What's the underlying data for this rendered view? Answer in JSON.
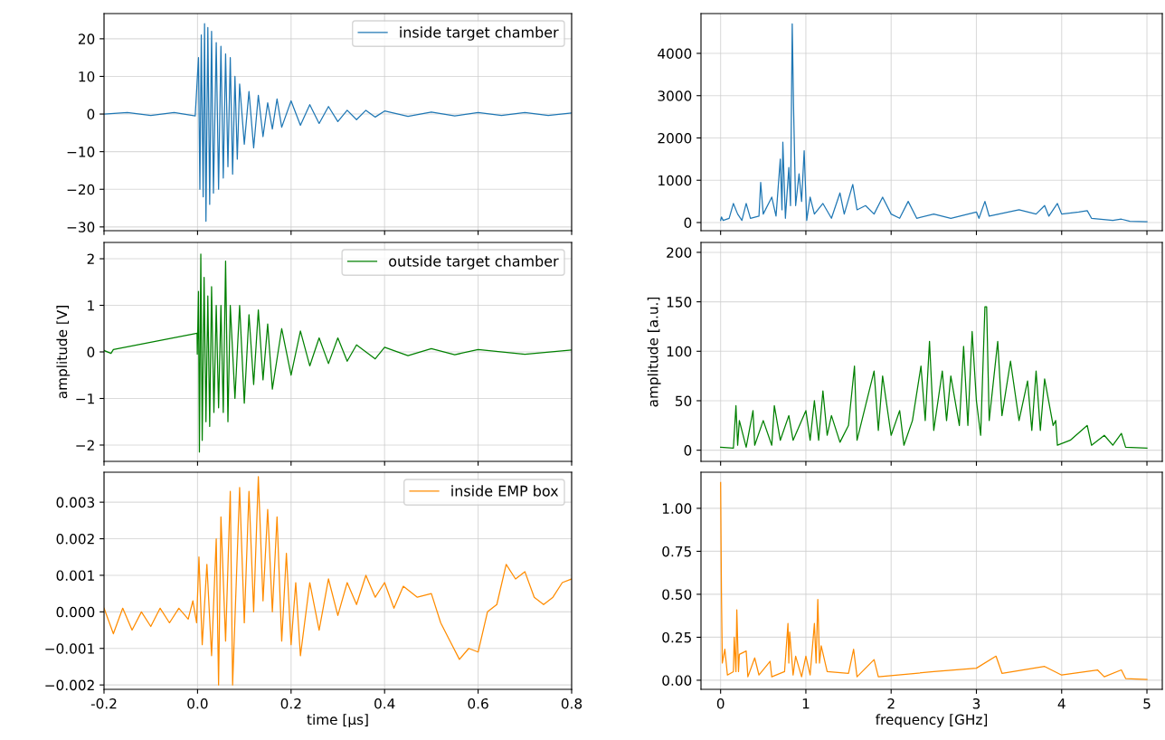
{
  "chart_data": [
    {
      "type": "line",
      "grid": true,
      "legend": "top right",
      "tick_labels": "y",
      "xlim": [
        -0.2,
        0.8
      ],
      "ylim": [
        -31,
        26.7
      ],
      "yticks": [
        {
          "value": -30,
          "label": "−30"
        },
        {
          "value": -20,
          "label": "−20"
        },
        {
          "value": -10,
          "label": "−10"
        },
        0,
        10,
        20
      ],
      "series": [
        {
          "name": "inside target chamber",
          "color": "#1f77b4",
          "x": [
            -0.2,
            -0.15,
            -0.1,
            -0.05,
            -0.005,
            0.002,
            0.005,
            0.008,
            0.012,
            0.015,
            0.018,
            0.022,
            0.026,
            0.03,
            0.034,
            0.04,
            0.045,
            0.05,
            0.055,
            0.06,
            0.065,
            0.07,
            0.075,
            0.08,
            0.085,
            0.09,
            0.1,
            0.11,
            0.12,
            0.13,
            0.14,
            0.15,
            0.16,
            0.17,
            0.18,
            0.2,
            0.22,
            0.24,
            0.26,
            0.28,
            0.3,
            0.32,
            0.34,
            0.36,
            0.38,
            0.4,
            0.45,
            0.5,
            0.55,
            0.6,
            0.65,
            0.7,
            0.75,
            0.8
          ],
          "values": [
            0,
            0.4,
            -0.4,
            0.4,
            -0.5,
            15,
            -20,
            21,
            -22,
            24,
            -28.5,
            23,
            -24,
            22,
            -21,
            19,
            -20,
            18,
            -17,
            16,
            -14,
            15,
            -16,
            10,
            -12,
            8,
            -8,
            6,
            -9,
            5,
            -6,
            3,
            -4,
            4,
            -3.5,
            3.5,
            -3,
            2.5,
            -2.5,
            2,
            -2,
            1,
            -1.5,
            1,
            -0.8,
            0.8,
            -0.6,
            0.5,
            -0.5,
            0.4,
            -0.4,
            0.4,
            -0.4,
            0.3
          ]
        }
      ]
    },
    {
      "type": "line",
      "grid": true,
      "tick_labels": "y",
      "xlim": [
        -0.23,
        5.18
      ],
      "ylim": [
        -193,
        4941
      ],
      "yticks": [
        0,
        1000,
        2000,
        3000,
        4000
      ],
      "series": [
        {
          "color": "#1f77b4",
          "x": [
            0,
            0.01,
            0.03,
            0.1,
            0.15,
            0.2,
            0.25,
            0.3,
            0.35,
            0.45,
            0.47,
            0.5,
            0.6,
            0.65,
            0.7,
            0.72,
            0.73,
            0.76,
            0.8,
            0.82,
            0.84,
            0.855,
            0.86,
            0.88,
            0.92,
            0.95,
            0.98,
            1.0,
            1.01,
            1.05,
            1.1,
            1.2,
            1.3,
            1.4,
            1.45,
            1.55,
            1.6,
            1.7,
            1.8,
            1.9,
            2.0,
            2.1,
            2.2,
            2.3,
            2.5,
            2.7,
            3.0,
            3.03,
            3.1,
            3.15,
            3.5,
            3.7,
            3.8,
            3.85,
            3.95,
            4.0,
            4.2,
            4.3,
            4.35,
            4.6,
            4.7,
            4.8,
            5.0
          ],
          "values": [
            50,
            130,
            50,
            100,
            450,
            200,
            50,
            450,
            100,
            150,
            950,
            200,
            600,
            150,
            1500,
            300,
            1900,
            100,
            1300,
            400,
            4700,
            2800,
            2300,
            400,
            1150,
            500,
            1700,
            600,
            50,
            600,
            200,
            450,
            100,
            700,
            200,
            900,
            300,
            400,
            200,
            600,
            200,
            100,
            500,
            100,
            200,
            100,
            250,
            100,
            500,
            150,
            300,
            200,
            400,
            150,
            450,
            200,
            250,
            280,
            100,
            50,
            80,
            30,
            20
          ]
        }
      ]
    },
    {
      "type": "line",
      "grid": true,
      "legend": "top right",
      "tick_labels": "y",
      "ylabel": "amplitude [V]",
      "xlim": [
        -0.2,
        0.8
      ],
      "ylim": [
        -2.35,
        2.35
      ],
      "yticks": [
        {
          "value": -2,
          "label": "−2"
        },
        {
          "value": -1,
          "label": "−1"
        },
        0,
        1,
        2
      ],
      "series": [
        {
          "name": "outside target chamber",
          "color": "#008000",
          "x": [
            -0.2,
            -0.185,
            -0.18,
            -0.001,
            -0.0005,
            0.002,
            0.004,
            0.007,
            0.01,
            0.014,
            0.018,
            0.022,
            0.026,
            0.03,
            0.035,
            0.04,
            0.045,
            0.05,
            0.055,
            0.06,
            0.065,
            0.07,
            0.08,
            0.09,
            0.1,
            0.11,
            0.12,
            0.13,
            0.14,
            0.15,
            0.16,
            0.18,
            0.2,
            0.22,
            0.24,
            0.26,
            0.28,
            0.3,
            0.32,
            0.34,
            0.38,
            0.4,
            0.45,
            0.5,
            0.55,
            0.6,
            0.7,
            0.8
          ],
          "values": [
            0.03,
            -0.03,
            0.05,
            0.4,
            -0.05,
            1.3,
            -2.15,
            2.1,
            -1.9,
            1.6,
            -1.5,
            1.2,
            -1.6,
            1.4,
            -1.3,
            1.0,
            -1.2,
            1.0,
            -1.3,
            1.95,
            -1.5,
            1.0,
            -1.0,
            1.0,
            -1.1,
            0.8,
            -0.7,
            0.9,
            -0.6,
            0.6,
            -0.8,
            0.5,
            -0.5,
            0.45,
            -0.3,
            0.3,
            -0.25,
            0.3,
            -0.2,
            0.15,
            -0.15,
            0.1,
            -0.08,
            0.07,
            -0.06,
            0.05,
            -0.05,
            0.04
          ]
        }
      ]
    },
    {
      "type": "line",
      "grid": true,
      "tick_labels": "y",
      "ylabel": "amplitude [a.u.]",
      "xlim": [
        -0.23,
        5.18
      ],
      "ylim": [
        -11.3,
        210
      ],
      "yticks": [
        0,
        50,
        100,
        150,
        200
      ],
      "series": [
        {
          "color": "#008000",
          "x": [
            0,
            0.15,
            0.18,
            0.2,
            0.22,
            0.3,
            0.38,
            0.4,
            0.5,
            0.6,
            0.63,
            0.7,
            0.8,
            0.85,
            1.0,
            1.05,
            1.1,
            1.15,
            1.2,
            1.25,
            1.3,
            1.4,
            1.5,
            1.57,
            1.6,
            1.7,
            1.8,
            1.85,
            1.9,
            2.0,
            2.1,
            2.15,
            2.25,
            2.35,
            2.4,
            2.45,
            2.5,
            2.6,
            2.65,
            2.7,
            2.8,
            2.85,
            2.9,
            2.95,
            3.0,
            3.05,
            3.1,
            3.12,
            3.15,
            3.25,
            3.3,
            3.4,
            3.5,
            3.6,
            3.65,
            3.7,
            3.75,
            3.8,
            3.9,
            3.93,
            3.95,
            4.1,
            4.3,
            4.35,
            4.5,
            4.6,
            4.7,
            4.75,
            5.0
          ],
          "values": [
            3,
            2,
            45,
            5,
            30,
            3,
            40,
            5,
            30,
            5,
            45,
            10,
            35,
            10,
            40,
            10,
            50,
            10,
            60,
            15,
            35,
            8,
            25,
            85,
            10,
            45,
            80,
            20,
            75,
            15,
            40,
            5,
            30,
            85,
            30,
            110,
            20,
            80,
            30,
            75,
            25,
            105,
            25,
            120,
            50,
            15,
            145,
            145,
            30,
            110,
            35,
            90,
            30,
            70,
            20,
            80,
            20,
            72,
            25,
            30,
            5,
            10,
            25,
            5,
            15,
            5,
            17,
            3,
            2
          ]
        }
      ]
    },
    {
      "type": "line",
      "grid": true,
      "legend": "top right",
      "xlabel": "time [µs]",
      "xlim": [
        -0.2,
        0.8
      ],
      "xticks": [
        {
          "value": -0.2,
          "label": "-0.2"
        },
        {
          "value": 0.0,
          "label": "0.0"
        },
        0.2,
        0.4,
        0.6,
        0.8
      ],
      "ylim": [
        -0.00212,
        0.00382
      ],
      "yticks": [
        {
          "value": -0.002,
          "label": "−0.002"
        },
        {
          "value": -0.001,
          "label": "−0.001"
        },
        {
          "value": 0,
          "label": "0.000"
        },
        0.001,
        0.002,
        0.003
      ],
      "series": [
        {
          "name": "inside EMP box",
          "color": "#ff8c00",
          "x": [
            -0.2,
            -0.18,
            -0.16,
            -0.14,
            -0.12,
            -0.1,
            -0.08,
            -0.06,
            -0.04,
            -0.02,
            -0.01,
            -0.002,
            0.003,
            0.01,
            0.02,
            0.03,
            0.04,
            0.045,
            0.05,
            0.06,
            0.07,
            0.075,
            0.09,
            0.1,
            0.11,
            0.12,
            0.13,
            0.14,
            0.15,
            0.16,
            0.17,
            0.18,
            0.19,
            0.2,
            0.21,
            0.22,
            0.24,
            0.26,
            0.28,
            0.3,
            0.32,
            0.34,
            0.36,
            0.38,
            0.4,
            0.42,
            0.44,
            0.47,
            0.5,
            0.52,
            0.54,
            0.56,
            0.58,
            0.6,
            0.62,
            0.64,
            0.66,
            0.68,
            0.7,
            0.72,
            0.74,
            0.76,
            0.78,
            0.8
          ],
          "values": [
            0.0001,
            -0.0006,
            0.0001,
            -0.0005,
            0.0,
            -0.0004,
            0.0001,
            -0.0003,
            0.0001,
            -0.0002,
            0.0003,
            -0.0003,
            0.0015,
            -0.0009,
            0.0013,
            -0.0012,
            0.002,
            -0.002,
            0.0026,
            -0.0008,
            0.0033,
            -0.002,
            0.0034,
            -0.0003,
            0.0033,
            0.0,
            0.0037,
            0.0003,
            0.0028,
            0.0,
            0.0026,
            -0.0008,
            0.0016,
            -0.0009,
            0.0008,
            -0.0012,
            0.0008,
            -0.0005,
            0.0009,
            -0.0001,
            0.0008,
            0.0002,
            0.001,
            0.0004,
            0.0008,
            0.0001,
            0.0007,
            0.0004,
            0.0005,
            -0.0003,
            -0.0008,
            -0.0013,
            -0.001,
            -0.0011,
            0.0,
            0.0002,
            0.0013,
            0.0009,
            0.0011,
            0.0004,
            0.0002,
            0.0004,
            0.0008,
            0.0009
          ]
        }
      ]
    },
    {
      "type": "line",
      "grid": true,
      "xlabel": "frequency [GHz]",
      "xlim": [
        -0.23,
        5.18
      ],
      "xticks": [
        0,
        1,
        2,
        3,
        4,
        5
      ],
      "ylim": [
        -0.053,
        1.21
      ],
      "yticks": [
        {
          "value": 0,
          "label": "0.00"
        },
        0.25,
        {
          "value": 0.5,
          "label": "0.50"
        },
        0.75,
        {
          "value": 1,
          "label": "1.00"
        }
      ],
      "series": [
        {
          "color": "#ff8c00",
          "x": [
            0.0,
            0.01,
            0.02,
            0.05,
            0.08,
            0.15,
            0.16,
            0.18,
            0.19,
            0.21,
            0.22,
            0.3,
            0.32,
            0.4,
            0.45,
            0.58,
            0.6,
            0.75,
            0.79,
            0.8,
            0.81,
            0.85,
            0.88,
            0.95,
            1.0,
            1.05,
            1.1,
            1.12,
            1.14,
            1.16,
            1.18,
            1.25,
            1.5,
            1.56,
            1.6,
            1.8,
            1.85,
            2.5,
            3.0,
            3.23,
            3.3,
            3.8,
            4.0,
            4.42,
            4.5,
            4.7,
            4.75,
            5.0
          ],
          "values": [
            1.15,
            0.5,
            0.1,
            0.18,
            0.03,
            0.05,
            0.25,
            0.05,
            0.41,
            0.05,
            0.15,
            0.17,
            0.02,
            0.13,
            0.03,
            0.11,
            0.02,
            0.05,
            0.33,
            0.1,
            0.28,
            0.03,
            0.14,
            0.02,
            0.14,
            0.03,
            0.33,
            0.1,
            0.47,
            0.1,
            0.2,
            0.05,
            0.04,
            0.18,
            0.02,
            0.12,
            0.02,
            0.05,
            0.07,
            0.14,
            0.04,
            0.08,
            0.03,
            0.06,
            0.02,
            0.06,
            0.01,
            0.005
          ]
        }
      ]
    }
  ]
}
